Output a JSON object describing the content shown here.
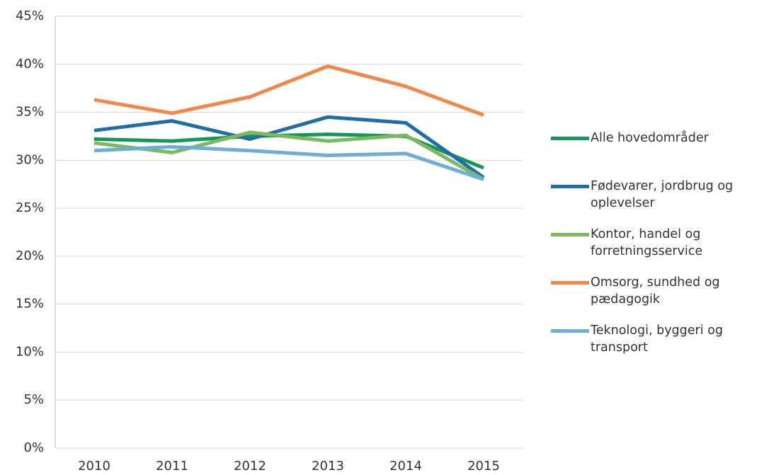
{
  "chart_data": {
    "type": "line",
    "categories": [
      "2010",
      "2011",
      "2012",
      "2013",
      "2014",
      "2015"
    ],
    "series": [
      {
        "name": "Alle hovedområder",
        "color": "#17965a",
        "values": [
          32.2,
          32.0,
          32.5,
          32.7,
          32.5,
          29.2
        ]
      },
      {
        "name": "Fødevarer, jordbrug og oplevelser",
        "color": "#1f6ea8",
        "values": [
          33.1,
          34.1,
          32.2,
          34.5,
          33.9,
          28.2
        ]
      },
      {
        "name": "Kontor, handel og forretningsservice",
        "color": "#7cb95c",
        "values": [
          31.8,
          30.8,
          32.9,
          32.0,
          32.6,
          28.0
        ]
      },
      {
        "name": "Omsorg, sundhed og pædagogik",
        "color": "#f0884a",
        "values": [
          36.3,
          34.9,
          36.6,
          39.8,
          37.7,
          34.7
        ]
      },
      {
        "name": "Teknologi, byggeri og transport",
        "color": "#6aafd8",
        "values": [
          31.0,
          31.4,
          31.0,
          30.5,
          30.7,
          28.0
        ]
      }
    ],
    "ylim": [
      0,
      45
    ],
    "yticks": [
      {
        "value": 0,
        "label": "0%"
      },
      {
        "value": 5,
        "label": "5%"
      },
      {
        "value": 10,
        "label": "10%"
      },
      {
        "value": 15,
        "label": "15%"
      },
      {
        "value": 20,
        "label": "20%"
      },
      {
        "value": 25,
        "label": "25%"
      },
      {
        "value": 30,
        "label": "30%"
      },
      {
        "value": 35,
        "label": "35%"
      },
      {
        "value": 40,
        "label": "40%"
      },
      {
        "value": 45,
        "label": "45%"
      }
    ],
    "grid": true,
    "legend": "right"
  }
}
